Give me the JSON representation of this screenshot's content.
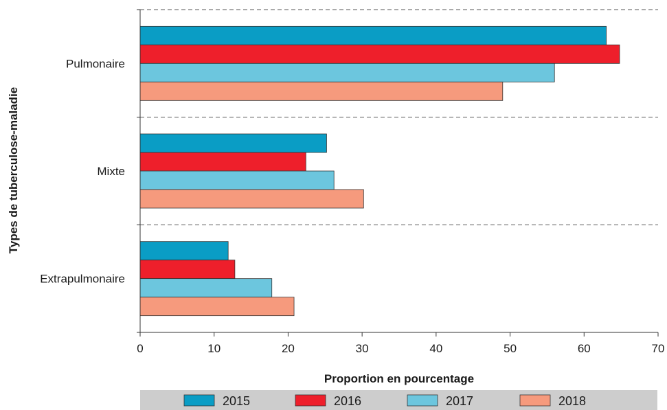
{
  "chart_data": {
    "type": "bar",
    "orientation": "horizontal",
    "title": "",
    "xlabel": "Proportion en pourcentage",
    "ylabel": "Types de tuberculose-maladie",
    "categories": [
      "Pulmonaire",
      "Mixte",
      "Extrapulmonaire"
    ],
    "xlim": [
      0,
      70
    ],
    "xticks": [
      0,
      10,
      20,
      30,
      40,
      50,
      60,
      70
    ],
    "grid": "dashed horizontal separators between categories",
    "legend_position": "bottom",
    "series": [
      {
        "name": "2015",
        "color": "#0a9dc5",
        "values": [
          63.0,
          25.2,
          11.9
        ]
      },
      {
        "name": "2016",
        "color": "#ee1f2b",
        "values": [
          64.8,
          22.4,
          12.8
        ]
      },
      {
        "name": "2017",
        "color": "#6cc6de",
        "values": [
          56.0,
          26.2,
          17.8
        ]
      },
      {
        "name": "2018",
        "color": "#f69a7d",
        "values": [
          49.0,
          30.2,
          20.8
        ]
      }
    ]
  }
}
